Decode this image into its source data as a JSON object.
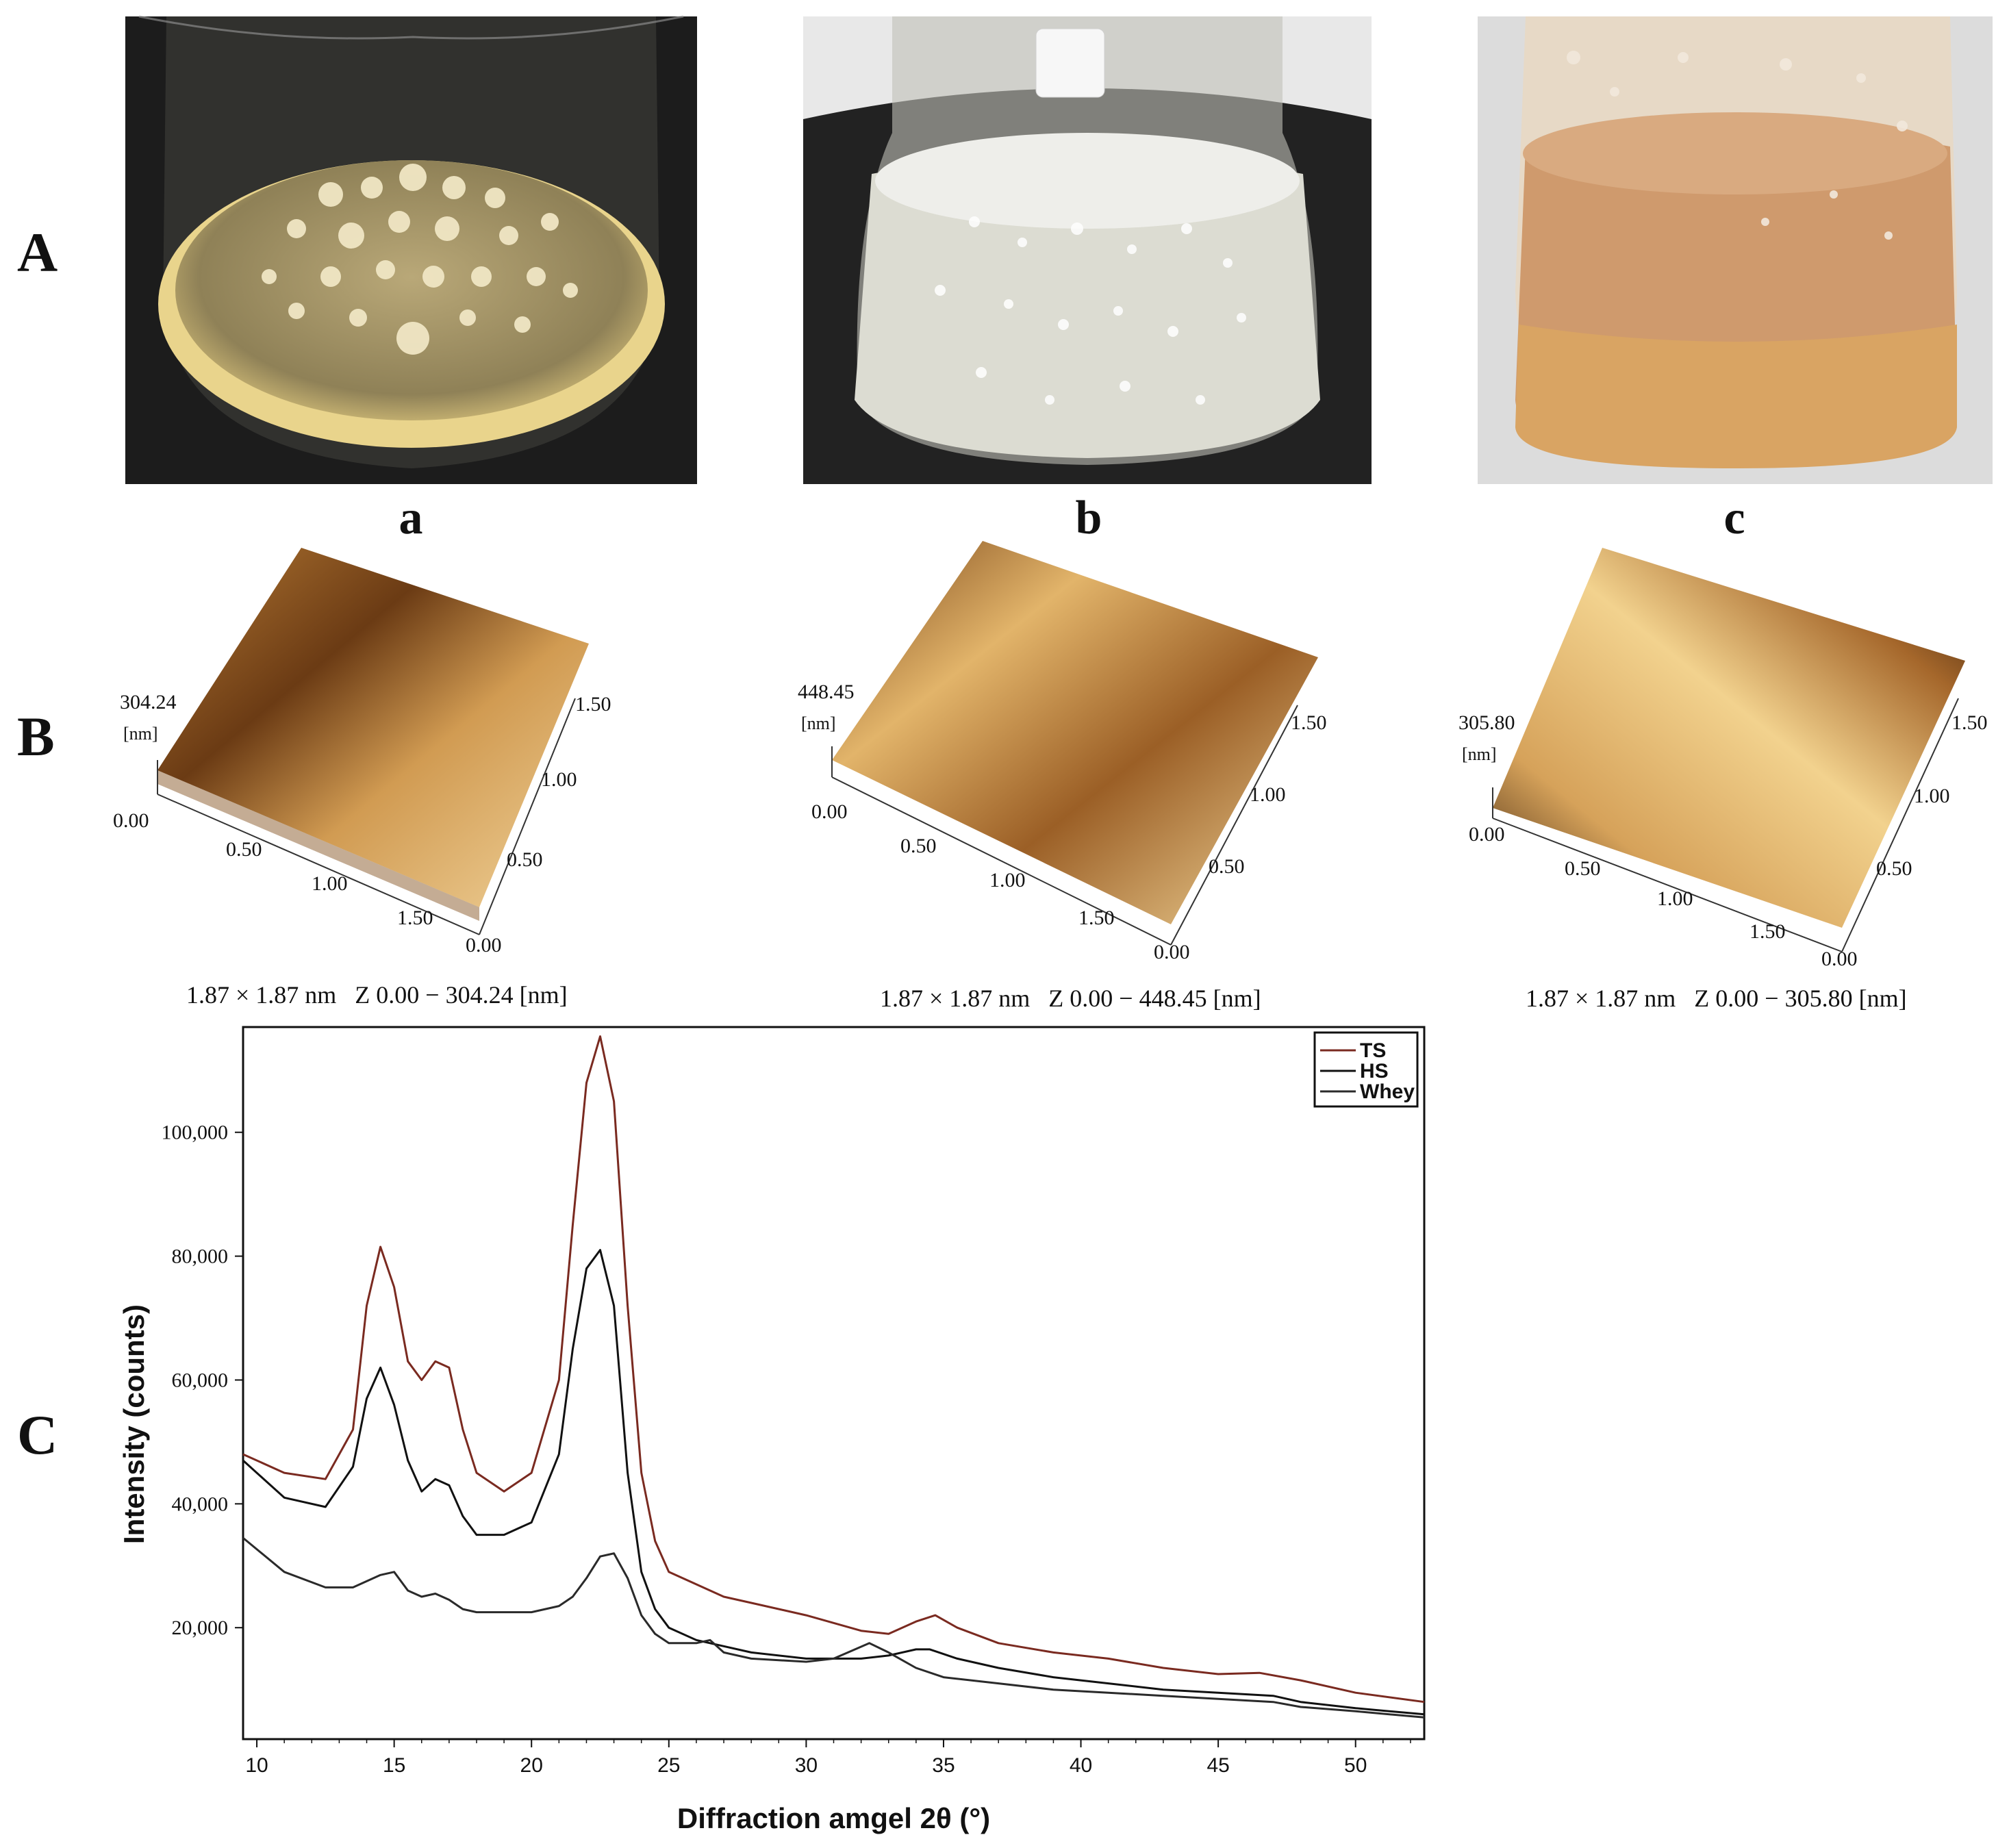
{
  "panels": {
    "row_labels": [
      "A",
      "B",
      "C"
    ],
    "sub_labels": [
      "a",
      "b",
      "c"
    ]
  },
  "flask_photos": [
    {
      "id": "a",
      "liquid_color": "#c9b27a",
      "bg_color": "#1e1e1e",
      "colony_color": "#efe6c2"
    },
    {
      "id": "b",
      "liquid_color": "#dcdcd2",
      "bg_color": "#2a2a2a",
      "colony_color": "#f4f4ee"
    },
    {
      "id": "c",
      "liquid_color": "#c98f5e",
      "bg_color": "#e6e6e6",
      "colony_color": "#e0a870"
    }
  ],
  "afm": [
    {
      "id": "a",
      "z_max_label": "304.24",
      "z_unit": "[nm]",
      "axis_ticks_left": [
        "0.00",
        "0.50",
        "1.00",
        "1.50"
      ],
      "axis_ticks_right": [
        "0.00",
        "0.50",
        "1.00",
        "1.50"
      ],
      "caption": "1.87 × 1.87 nm   Z 0.00 − 304.24 [nm]"
    },
    {
      "id": "b",
      "z_max_label": "448.45",
      "z_unit": "[nm]",
      "axis_ticks_left": [
        "0.00",
        "0.50",
        "1.00",
        "1.50"
      ],
      "axis_ticks_right": [
        "0.00",
        "0.50",
        "1.00",
        "1.50"
      ],
      "caption": "1.87 × 1.87 nm   Z 0.00 − 448.45 [nm]"
    },
    {
      "id": "c",
      "z_max_label": "305.80",
      "z_unit": "[nm]",
      "axis_ticks_left": [
        "0.00",
        "0.50",
        "1.00",
        "1.50"
      ],
      "axis_ticks_right": [
        "0.00",
        "0.50",
        "1.00",
        "1.50"
      ],
      "caption": "1.87 × 1.87 nm   Z 0.00 − 305.80 [nm]"
    }
  ],
  "afm_colors": {
    "light": "#f3d79a",
    "mid": "#c98a3e",
    "dark": "#3a1f0a"
  },
  "chart_data": {
    "type": "line",
    "title": "",
    "xlabel": "Diffraction amgel 2θ (°)",
    "ylabel": "Intensity (counts)",
    "xlim": [
      9.5,
      52.5
    ],
    "ylim": [
      2000,
      117000
    ],
    "xticks": [
      10,
      15,
      20,
      25,
      30,
      35,
      40,
      45,
      50
    ],
    "yticks": [
      20000,
      40000,
      60000,
      80000,
      100000
    ],
    "ytick_labels": [
      "20,000",
      "40,000",
      "60,000",
      "80,000",
      "100,000"
    ],
    "legend_position": "top-right",
    "grid": false,
    "series": [
      {
        "name": "TS",
        "color": "#7a2a20",
        "x": [
          9.5,
          11,
          12.5,
          13.5,
          14,
          14.5,
          15,
          15.5,
          16,
          16.5,
          17,
          17.5,
          18,
          19,
          20,
          21,
          21.5,
          22,
          22.5,
          23,
          23.5,
          24,
          24.5,
          25,
          26,
          27,
          28,
          30,
          32,
          33,
          34,
          34.7,
          35.5,
          37,
          39,
          41,
          43,
          45,
          46.5,
          48,
          50,
          52.5
        ],
        "y": [
          48000,
          45000,
          44000,
          52000,
          72000,
          81500,
          75000,
          63000,
          60000,
          63000,
          62000,
          52000,
          45000,
          42000,
          45000,
          60000,
          85000,
          108000,
          115500,
          105000,
          72000,
          45000,
          34000,
          29000,
          27000,
          25000,
          24000,
          22000,
          19500,
          19000,
          21000,
          22000,
          20000,
          17500,
          16000,
          15000,
          13500,
          12500,
          12700,
          11500,
          9500,
          8000
        ]
      },
      {
        "name": "HS",
        "color": "#111111",
        "x": [
          9.5,
          11,
          12.5,
          13.5,
          14,
          14.5,
          15,
          15.5,
          16,
          16.5,
          17,
          17.5,
          18,
          19,
          20,
          21,
          21.5,
          22,
          22.5,
          23,
          23.5,
          24,
          24.5,
          25,
          26,
          27,
          28,
          30,
          32,
          33,
          34,
          34.5,
          35.5,
          37,
          39,
          41,
          43,
          45,
          47,
          48,
          50,
          52.5
        ],
        "y": [
          47000,
          41000,
          39500,
          46000,
          57000,
          62000,
          56000,
          47000,
          42000,
          44000,
          43000,
          38000,
          35000,
          35000,
          37000,
          48000,
          65000,
          78000,
          81000,
          72000,
          45000,
          29000,
          23000,
          20000,
          18000,
          17000,
          16000,
          15000,
          15000,
          15500,
          16500,
          16500,
          15000,
          13500,
          12000,
          11000,
          10000,
          9500,
          9000,
          8000,
          7000,
          6000
        ]
      },
      {
        "name": "Whey",
        "color": "#2a2a2a",
        "x": [
          9.5,
          11,
          12.5,
          13.5,
          14.5,
          15,
          15.5,
          16,
          16.5,
          17,
          17.5,
          18,
          19,
          20,
          21,
          21.5,
          22,
          22.5,
          23,
          23.5,
          24,
          24.5,
          25,
          26,
          26.5,
          27,
          28,
          30,
          31,
          32.3,
          33,
          34,
          35,
          37,
          39,
          41,
          43,
          45,
          47,
          48,
          50,
          52.5
        ],
        "y": [
          34500,
          29000,
          26500,
          26500,
          28500,
          29000,
          26000,
          25000,
          25500,
          24500,
          23000,
          22500,
          22500,
          22500,
          23500,
          25000,
          28000,
          31500,
          32000,
          28000,
          22000,
          19000,
          17500,
          17500,
          18000,
          16000,
          15000,
          14500,
          15000,
          17500,
          16000,
          13500,
          12000,
          11000,
          10000,
          9500,
          9000,
          8500,
          8000,
          7200,
          6500,
          5500
        ]
      }
    ]
  }
}
